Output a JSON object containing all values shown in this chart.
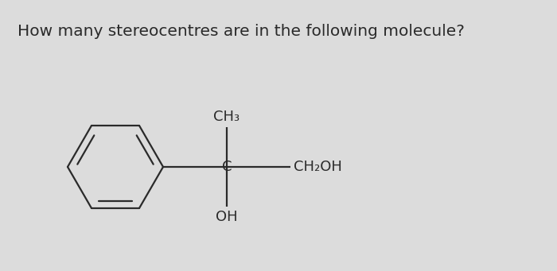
{
  "title": "How many stereocentres are in the following molecule?",
  "title_fontsize": 14.5,
  "bg_color": "#dcdcdc",
  "text_color": "#2a2a2a",
  "ch3_label": "CH₃",
  "c_label": "C",
  "ch2oh_label": "CH₂OH",
  "oh_label": "OH",
  "lw": 1.6,
  "font_size": 13
}
